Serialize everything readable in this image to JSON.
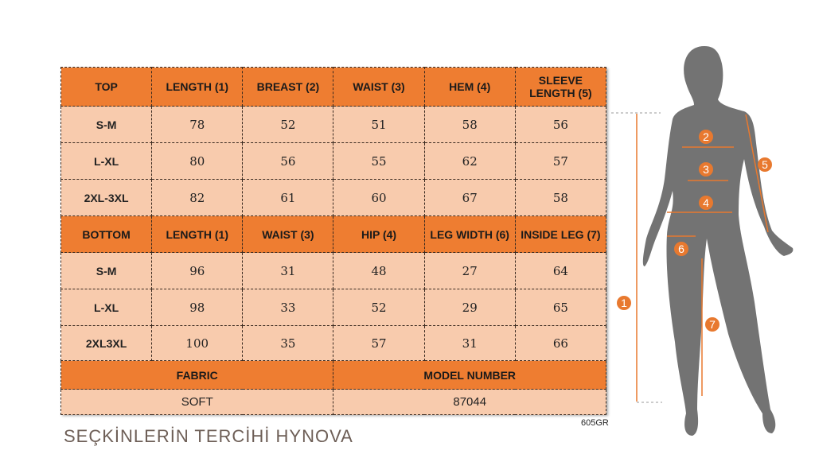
{
  "top": {
    "headers": [
      "TOP",
      "LENGTH (1)",
      "BREAST (2)",
      "WAIST (3)",
      "HEM (4)",
      "SLEEVE LENGTH (5)"
    ],
    "rows": [
      [
        "S-M",
        "78",
        "52",
        "51",
        "58",
        "56"
      ],
      [
        "L-XL",
        "80",
        "56",
        "55",
        "62",
        "57"
      ],
      [
        "2XL-3XL",
        "82",
        "61",
        "60",
        "67",
        "58"
      ]
    ]
  },
  "bottom": {
    "headers": [
      "BOTTOM",
      "LENGTH (1)",
      "WAIST (3)",
      "HIP (4)",
      "LEG WIDTH (6)",
      "INSIDE LEG (7)"
    ],
    "rows": [
      [
        "S-M",
        "96",
        "31",
        "48",
        "27",
        "64"
      ],
      [
        "L-XL",
        "98",
        "33",
        "52",
        "29",
        "65"
      ],
      [
        "2XL3XL",
        "100",
        "35",
        "57",
        "31",
        "66"
      ]
    ]
  },
  "info": {
    "headers": [
      "FABRIC",
      "MODEL NUMBER"
    ],
    "values": [
      "SOFT",
      "87044"
    ]
  },
  "watermark": "SEÇKİNLERİN TERCİHİ HYNOVA",
  "code": "605GR",
  "figure": {
    "markers": [
      "1",
      "2",
      "3",
      "4",
      "5",
      "6",
      "7"
    ]
  },
  "colors": {
    "header": "#ee7d31",
    "cell": "#f8cbad",
    "silhouette": "#737373",
    "marker": "#e8792f"
  }
}
